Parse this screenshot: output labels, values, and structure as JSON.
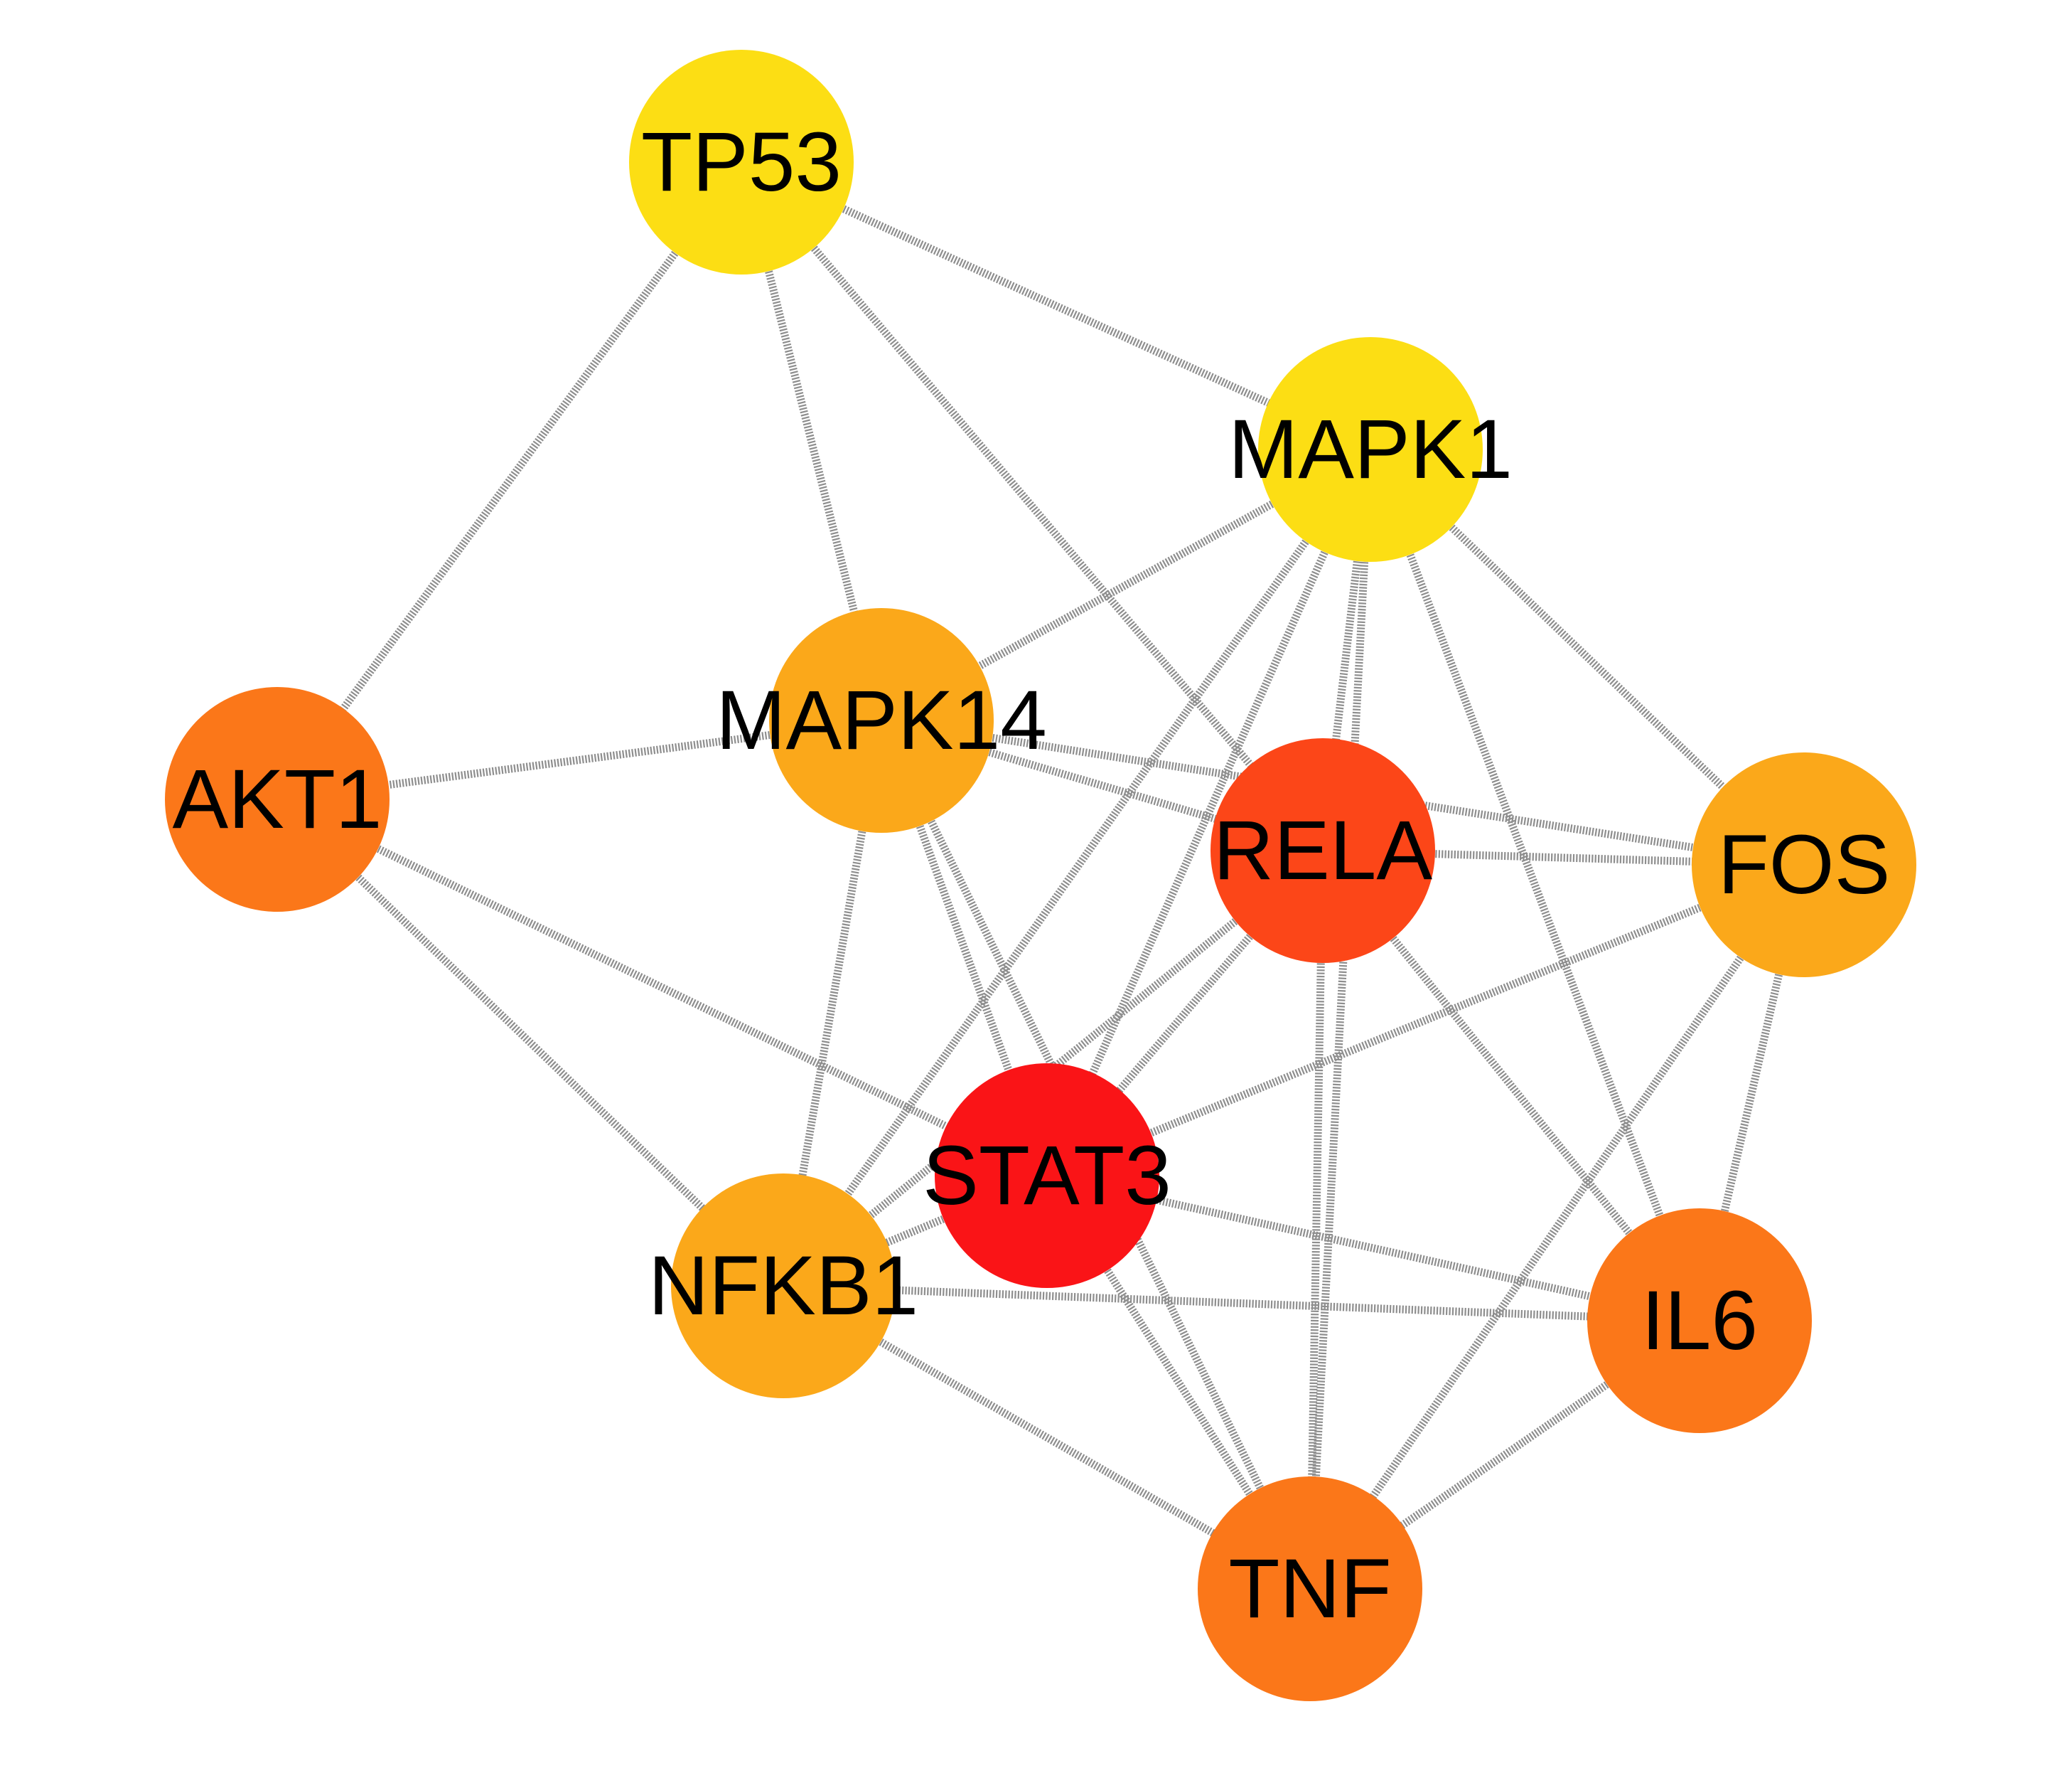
{
  "network": {
    "nodes": [
      {
        "id": "TP53",
        "label": "TP53",
        "color": "#FCDE14"
      },
      {
        "id": "MAPK1",
        "label": "MAPK1",
        "color": "#FCDE14"
      },
      {
        "id": "MAPK14",
        "label": "MAPK14",
        "color": "#FBA81A"
      },
      {
        "id": "AKT1",
        "label": "AKT1",
        "color": "#FB7719"
      },
      {
        "id": "RELA",
        "label": "RELA",
        "color": "#FC4618"
      },
      {
        "id": "FOS",
        "label": "FOS",
        "color": "#FBA81A"
      },
      {
        "id": "STAT3",
        "label": "STAT3",
        "color": "#FA1417"
      },
      {
        "id": "NFKB1",
        "label": "NFKB1",
        "color": "#FBA81A"
      },
      {
        "id": "IL6",
        "label": "IL6",
        "color": "#FB7719"
      },
      {
        "id": "TNF",
        "label": "TNF",
        "color": "#FB7719"
      }
    ],
    "edges": [
      [
        "TP53",
        "MAPK1"
      ],
      [
        "TP53",
        "MAPK14"
      ],
      [
        "TP53",
        "AKT1"
      ],
      [
        "TP53",
        "RELA"
      ],
      [
        "MAPK1",
        "MAPK14"
      ],
      [
        "MAPK1",
        "RELA"
      ],
      [
        "MAPK1",
        "FOS"
      ],
      [
        "MAPK1",
        "STAT3"
      ],
      [
        "MAPK1",
        "NFKB1"
      ],
      [
        "MAPK1",
        "IL6"
      ],
      [
        "MAPK1",
        "TNF"
      ],
      [
        "MAPK14",
        "AKT1"
      ],
      [
        "MAPK14",
        "RELA"
      ],
      [
        "MAPK14",
        "FOS"
      ],
      [
        "MAPK14",
        "STAT3"
      ],
      [
        "MAPK14",
        "NFKB1"
      ],
      [
        "MAPK14",
        "TNF"
      ],
      [
        "AKT1",
        "STAT3"
      ],
      [
        "AKT1",
        "NFKB1"
      ],
      [
        "RELA",
        "FOS"
      ],
      [
        "RELA",
        "STAT3"
      ],
      [
        "RELA",
        "NFKB1"
      ],
      [
        "RELA",
        "IL6"
      ],
      [
        "RELA",
        "TNF"
      ],
      [
        "FOS",
        "STAT3"
      ],
      [
        "FOS",
        "IL6"
      ],
      [
        "FOS",
        "TNF"
      ],
      [
        "STAT3",
        "NFKB1"
      ],
      [
        "STAT3",
        "IL6"
      ],
      [
        "STAT3",
        "TNF"
      ],
      [
        "NFKB1",
        "IL6"
      ],
      [
        "NFKB1",
        "TNF"
      ],
      [
        "IL6",
        "TNF"
      ]
    ]
  }
}
